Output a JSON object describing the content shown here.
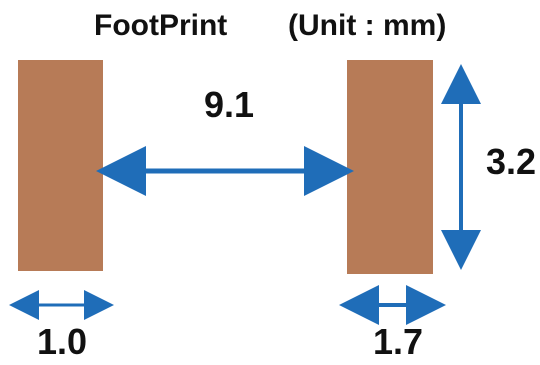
{
  "diagram": {
    "title": "FootPrint",
    "unit_label": "(Unit : mm)",
    "dimensions": {
      "gap": "9.1",
      "pad_height": "3.2",
      "left_pad_width": "1.0",
      "right_pad_width": "1.7"
    },
    "colors": {
      "pad_fill": "#B77B57",
      "dimension_line": "#1F6DB8",
      "text": "#111111",
      "background": "#FFFFFF"
    }
  }
}
